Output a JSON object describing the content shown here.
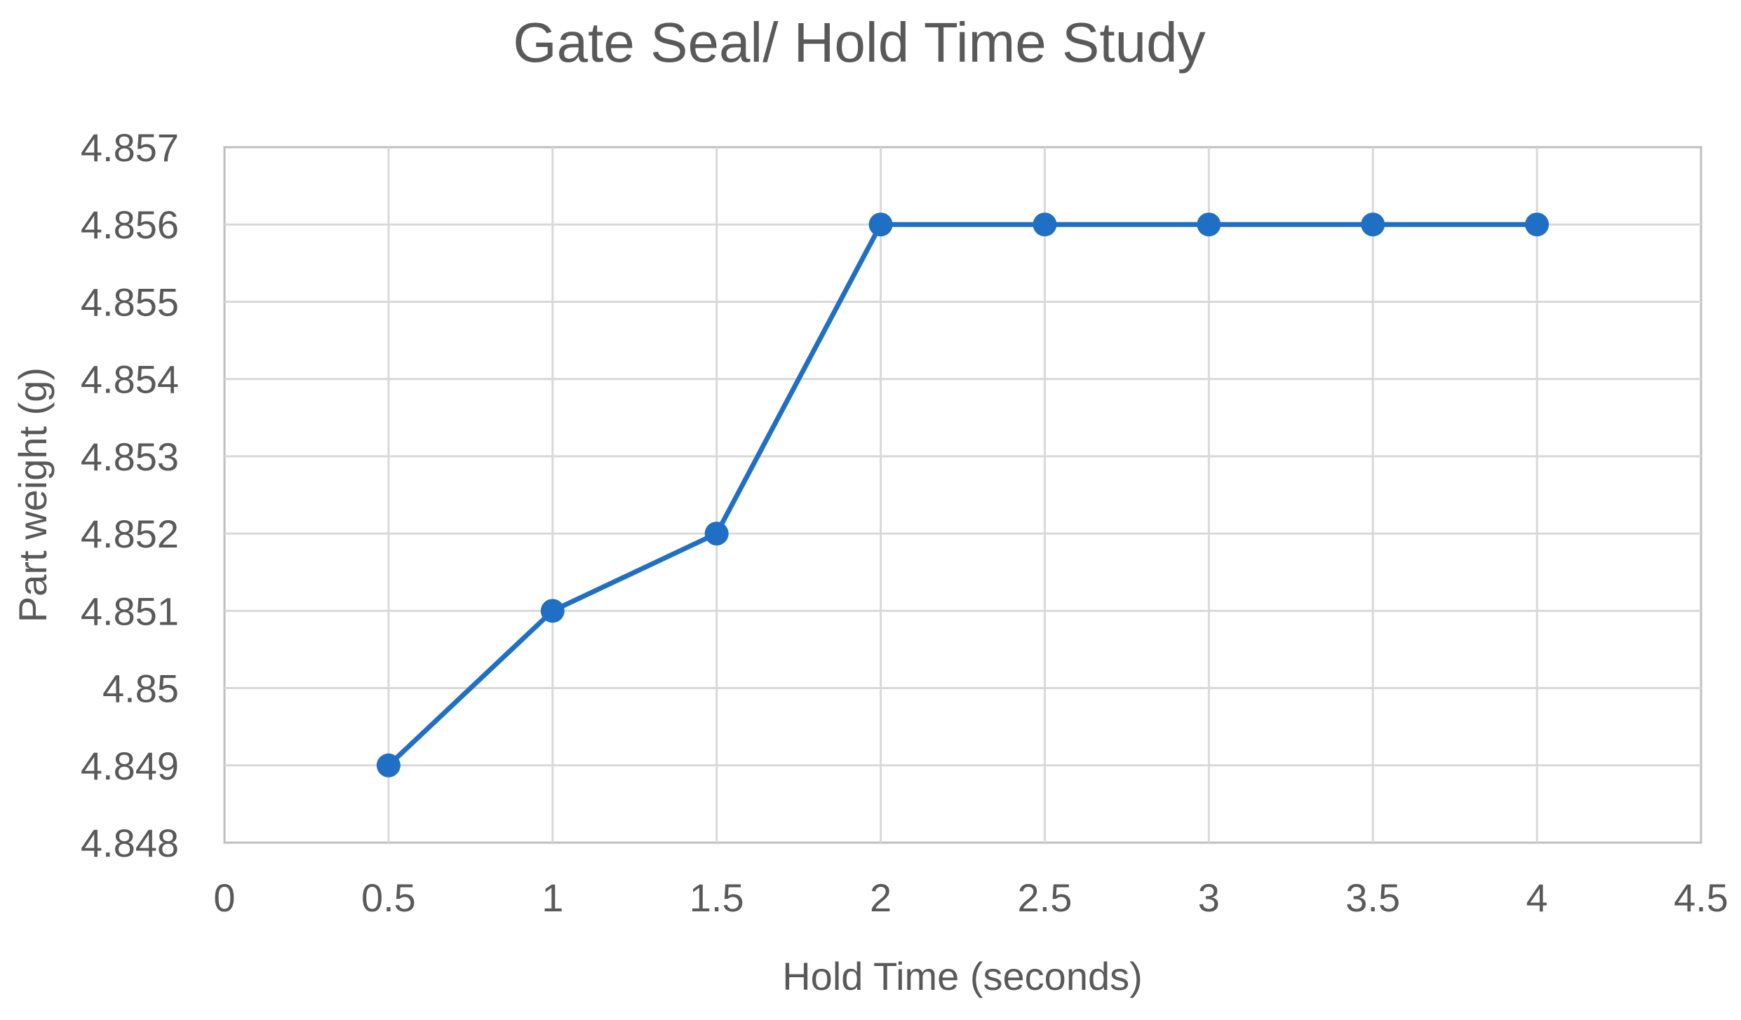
{
  "chart_data": {
    "type": "scatter",
    "title": "Gate Seal/ Hold Time Study",
    "xlabel": "Hold Time (seconds)",
    "ylabel": "Part weight (g)",
    "xlim": [
      0,
      4.5
    ],
    "ylim": [
      4.848,
      4.857
    ],
    "x_ticks": [
      "0",
      "0.5",
      "1",
      "1.5",
      "2",
      "2.5",
      "3",
      "3.5",
      "4",
      "4.5"
    ],
    "y_ticks": [
      "4.848",
      "4.849",
      "4.85",
      "4.851",
      "4.852",
      "4.853",
      "4.854",
      "4.855",
      "4.856",
      "4.857"
    ],
    "grid": true,
    "series": [
      {
        "points": [
          {
            "x": 0.5,
            "y": 4.849
          },
          {
            "x": 1,
            "y": 4.851
          },
          {
            "x": 1.5,
            "y": 4.852
          },
          {
            "x": 2,
            "y": 4.856
          },
          {
            "x": 2.5,
            "y": 4.856
          },
          {
            "x": 3,
            "y": 4.856
          },
          {
            "x": 3.5,
            "y": 4.856
          },
          {
            "x": 4,
            "y": 4.856
          }
        ],
        "color": "#1f6fc5",
        "lines": true,
        "markers": true
      }
    ],
    "colors": {
      "grid": "#d9d9d9",
      "axis": "#bfbfbf",
      "text": "#595959"
    }
  }
}
